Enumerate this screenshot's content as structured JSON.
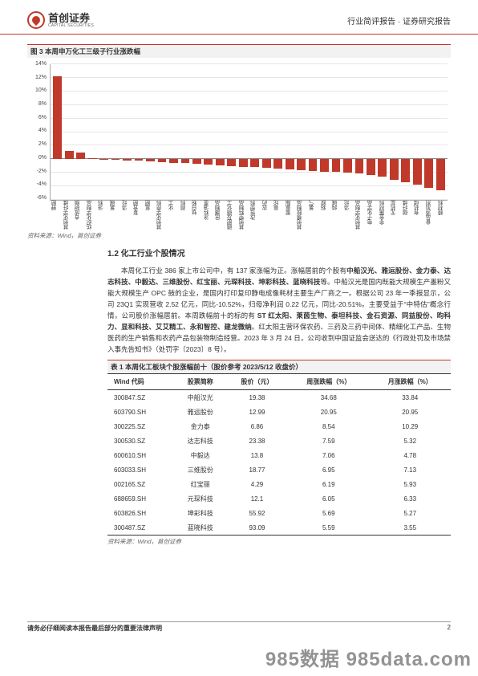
{
  "header": {
    "company_cn": "首创证券",
    "company_en": "CAPITAL SECURITIES",
    "right": "行业简评报告 · 证券研究报告"
  },
  "figure": {
    "title": "图 3 本周申万化工三级子行业涨跌幅",
    "type": "bar",
    "ylim_min": -6,
    "ylim_max": 14,
    "ytick_step": 2,
    "y_ticks": [
      "14%",
      "12%",
      "10%",
      "8%",
      "6%",
      "4%",
      "2%",
      "0%",
      "-2%",
      "-4%",
      "-6%"
    ],
    "gridline_color": "#e6e6e6",
    "bar_color": "#c0392b",
    "background_color": "#ffffff",
    "categories": [
      "钾肥",
      "其他化学纤维",
      "合成树脂",
      "纺织化学制品",
      "涂料",
      "氯碱",
      "涤纶",
      "复合肥",
      "氮肥",
      "其他化学原料",
      "化工",
      "颜料",
      "钛白粉",
      "涂料油墨",
      "民爆制品",
      "磷肥及磷化工",
      "其他塑料制品",
      "改性塑料",
      "农药",
      "氨纶",
      "聚氨酯",
      "其他橡胶制品",
      "氯气",
      "粘胶",
      "纯碱",
      "涤纶",
      "其他化学制品",
      "电子化学品",
      "非金属材料",
      "无机盐",
      "碳纤维",
      "有机硅",
      "食品添加剂",
      "膜材料"
    ],
    "values": [
      12.2,
      1.2,
      1.0,
      0.1,
      0.05,
      -0.1,
      -0.2,
      -0.2,
      -0.3,
      -0.4,
      -0.5,
      -0.6,
      -0.7,
      -0.8,
      -0.9,
      -1.0,
      -1.1,
      -1.2,
      -1.3,
      -1.4,
      -1.5,
      -1.6,
      -1.7,
      -1.8,
      -1.9,
      -2.0,
      -2.1,
      -2.3,
      -2.6,
      -3.0,
      -3.4,
      -3.8,
      -4.2,
      -4.6
    ],
    "source": "资料来源：Wind，首创证券"
  },
  "section": {
    "title": "1.2 化工行业个股情况",
    "para": "本周化工行业 386 家上市公司中，有 137 家涨幅为正。涨幅居前的个股有",
    "bold1": "中船汉光、雅运股份、金力泰、达志科技、中毅达、三维股份、红宝丽、元琛科技、坤彩科技、蓝晓科技",
    "para1b": "等。中船汉光是国内既能大规模生产墨粉又能大规模生产  OPC 鼓的企业，是国内打印复印静电成像耗材主要生产厂商之一。根据公司 23 年一季报显示，公司 23Q1 实现营收 2.52 亿元，同比-10.52%，归母净利润 0.22 亿元，同比-20.51%。主要受益于“中特估”概念行情，公司股价涨幅居前。本周跌幅前十的标的有",
    "bold2": "ST 红太阳、莱茵生物、泰坦科技、金石资源、同益股份、昀科力、显和科技、艾艾精工、永和智控、建龙微纳",
    "para1c": "。红太阳主营环保农药、三药及三药中间体、精细化工产品、生物医药的生产销售和农药产品包装物制造经营。2023 年 3 月 24 日，公司收到中国证监会送达的《行政处罚及市场禁入事先告知书》（处罚字〔2023〕8 号）。"
  },
  "table": {
    "title": "表 1 本周化工板块个股涨幅前十（股价参考 2023/5/12 收盘价）",
    "columns": [
      "Wind 代码",
      "股票简称",
      "股价（元）",
      "周涨跌幅（%）",
      "月涨跌幅（%）"
    ],
    "rows": [
      [
        "300847.SZ",
        "中船汉光",
        "19.38",
        "34.68",
        "33.84"
      ],
      [
        "603790.SH",
        "雅运股份",
        "12.99",
        "20.95",
        "20.95"
      ],
      [
        "300225.SZ",
        "金力泰",
        "6.86",
        "8.54",
        "10.29"
      ],
      [
        "300530.SZ",
        "达志科技",
        "23.38",
        "7.59",
        "5.32"
      ],
      [
        "600610.SH",
        "中毅达",
        "13.8",
        "7.06",
        "4.78"
      ],
      [
        "603033.SH",
        "三维股份",
        "18.77",
        "6.95",
        "7.13"
      ],
      [
        "002165.SZ",
        "红宝丽",
        "4.29",
        "6.19",
        "5.93"
      ],
      [
        "688659.SH",
        "元琛科技",
        "12.1",
        "6.05",
        "6.33"
      ],
      [
        "603826.SH",
        "坤彩科技",
        "55.92",
        "5.69",
        "5.27"
      ],
      [
        "300487.SZ",
        "蓝晓科技",
        "93.09",
        "5.59",
        "3.55"
      ]
    ],
    "source": "资料来源：Wind，首创证券"
  },
  "footer": {
    "disclaimer": "请务必仔细阅读本报告最后部分的重要法律声明",
    "page": "2"
  },
  "watermark": "985数据 985data.com"
}
